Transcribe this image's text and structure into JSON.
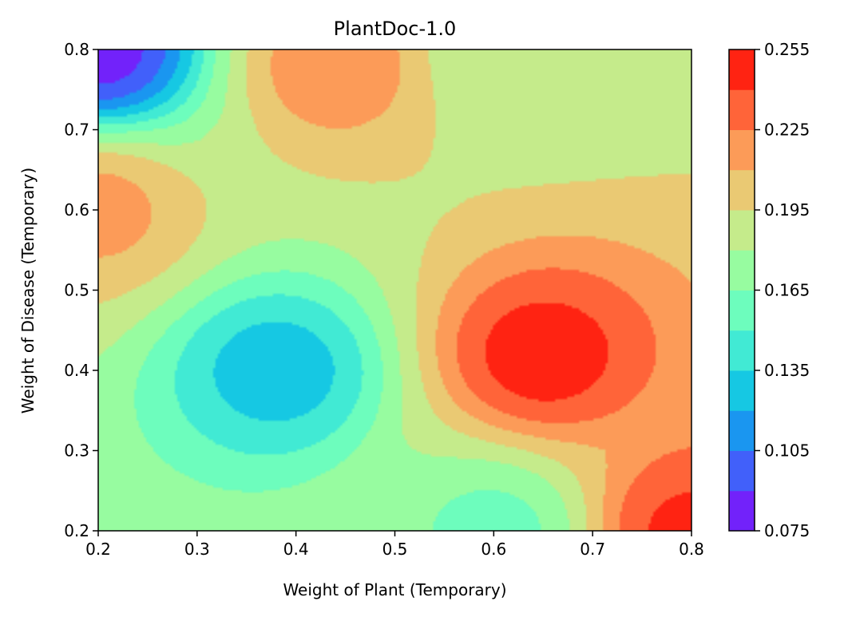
{
  "chart_data": {
    "type": "heatmap",
    "subtype": "filled-contour",
    "title": "PlantDoc-1.0",
    "xlabel": "Weight of Plant (Temporary)",
    "ylabel": "Weight of Disease (Temporary)",
    "xlim": [
      0.2,
      0.8
    ],
    "ylim": [
      0.2,
      0.8
    ],
    "x_ticks": [
      "0.2",
      "0.3",
      "0.4",
      "0.5",
      "0.6",
      "0.7",
      "0.8"
    ],
    "y_ticks": [
      "0.2",
      "0.3",
      "0.4",
      "0.5",
      "0.6",
      "0.7",
      "0.8"
    ],
    "colorbar": {
      "range": [
        0.075,
        0.255
      ],
      "levels": [
        0.075,
        0.09,
        0.105,
        0.12,
        0.135,
        0.15,
        0.165,
        0.18,
        0.195,
        0.21,
        0.225,
        0.24,
        0.255
      ],
      "tick_labels": [
        "0.075",
        "0.105",
        "0.135",
        "0.165",
        "0.195",
        "0.225",
        "0.255"
      ],
      "colors": [
        "#7222fa",
        "#4160fa",
        "#1a96f0",
        "#16c8e3",
        "#41ead4",
        "#6dfdbd",
        "#97fca0",
        "#c5eb8b",
        "#eac973",
        "#fc9b58",
        "#ff6439",
        "#ff2312"
      ]
    },
    "surface_peaks": [
      {
        "x": 0.65,
        "y": 0.42,
        "value": 0.25
      },
      {
        "x": 0.38,
        "y": 0.4,
        "value": 0.125
      },
      {
        "x": 0.2,
        "y": 0.8,
        "value": 0.08
      },
      {
        "x": 0.8,
        "y": 0.2,
        "value": 0.245
      },
      {
        "x": 0.44,
        "y": 0.78,
        "value": 0.22
      },
      {
        "x": 0.2,
        "y": 0.6,
        "value": 0.215
      },
      {
        "x": 0.6,
        "y": 0.2,
        "value": 0.16
      },
      {
        "x": 0.62,
        "y": 0.8,
        "value": 0.18
      }
    ]
  }
}
